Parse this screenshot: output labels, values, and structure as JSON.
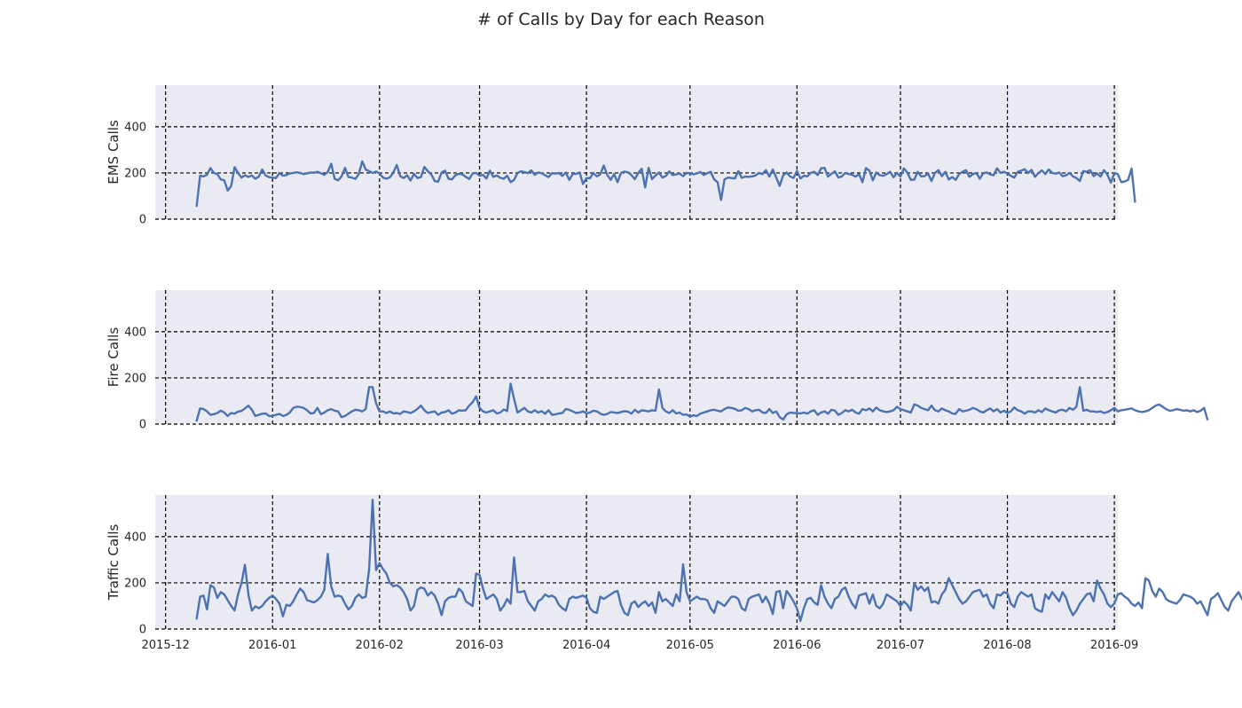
{
  "figure": {
    "title": "# of Calls by Day for each Reason"
  },
  "colors": {
    "line": "#4c72b0",
    "axes_background": "#eaeaf2",
    "grid": "#000000"
  },
  "chart_data": [
    {
      "type": "line",
      "ylabel": "EMS Calls",
      "ylim": [
        0,
        580
      ],
      "yticks": [
        0,
        200,
        400
      ],
      "xlim": [
        "2015-11-28",
        "2016-09-02"
      ],
      "xticks": [
        "2015-12",
        "2016-01",
        "2016-02",
        "2016-03",
        "2016-04",
        "2016-05",
        "2016-06",
        "2016-07",
        "2016-08",
        "2016-09"
      ],
      "grid": true,
      "series": [
        {
          "start": "2015-12-10",
          "values": [
            57,
            188,
            185,
            192,
            221,
            200,
            195,
            172,
            168,
            124,
            143,
            225,
            200,
            180,
            190,
            183,
            189,
            175,
            184,
            215,
            189,
            182,
            180,
            178,
            200,
            188,
            191,
            198,
            200,
            203,
            200,
            195,
            198,
            202,
            201,
            205,
            199,
            192,
            204,
            240,
            175,
            168,
            185,
            222,
            182,
            180,
            174,
            195,
            250,
            215,
            208,
            200,
            206,
            198,
            180,
            175,
            181,
            201,
            235,
            186,
            178,
            190,
            167,
            196,
            178,
            182,
            226,
            208,
            194,
            165,
            162,
            202,
            210,
            175,
            172,
            190,
            196,
            194,
            183,
            174,
            198,
            200,
            188,
            192,
            176,
            210,
            183,
            189,
            179,
            175,
            188,
            160,
            170,
            200,
            207,
            204,
            199,
            211,
            192,
            202,
            199,
            190,
            182,
            199,
            197,
            200,
            187,
            202,
            170,
            195,
            196,
            202,
            152,
            178,
            177,
            200,
            185,
            194,
            232,
            192,
            170,
            195,
            160,
            200,
            206,
            203,
            191,
            173,
            200,
            218,
            137,
            222,
            173,
            189,
            202,
            180,
            187,
            207,
            191,
            194,
            197,
            186,
            200,
            198,
            194,
            198,
            204,
            191,
            199,
            205,
            172,
            160,
            83,
            172,
            180,
            178,
            176,
            208,
            179,
            184,
            183,
            185,
            189,
            200,
            195,
            212,
            184,
            215,
            180,
            144,
            190,
            202,
            185,
            178,
            209,
            176,
            188,
            185,
            200,
            205,
            191,
            220,
            222,
            184,
            196,
            207,
            180,
            185,
            200,
            195,
            192,
            184,
            195,
            160,
            221,
            210,
            168,
            202,
            190,
            188,
            195,
            205,
            181,
            200,
            184,
            220,
            201,
            170,
            171,
            205,
            185,
            186,
            198,
            165,
            200,
            212,
            186,
            205,
            172,
            182,
            170,
            195,
            205,
            212,
            183,
            195,
            200,
            175,
            199,
            202,
            194,
            190,
            220,
            200,
            205,
            197,
            188,
            180,
            205,
            210,
            216,
            200,
            213,
            183,
            200,
            211,
            195,
            215,
            200,
            197,
            202,
            186,
            190,
            200,
            185,
            178,
            165,
            208,
            205,
            212,
            186,
            198,
            184,
            212,
            192,
            158,
            200,
            195,
            160,
            163,
            170,
            219,
            75
          ]
        }
      ]
    },
    {
      "type": "line",
      "ylabel": "Fire Calls",
      "ylim": [
        0,
        580
      ],
      "yticks": [
        0,
        200,
        400
      ],
      "xlim": [
        "2015-11-28",
        "2016-09-02"
      ],
      "xticks": [
        "2015-12",
        "2016-01",
        "2016-02",
        "2016-03",
        "2016-04",
        "2016-05",
        "2016-06",
        "2016-07",
        "2016-08",
        "2016-09"
      ],
      "grid": true,
      "series": [
        {
          "start": "2015-12-10",
          "values": [
            15,
            68,
            65,
            55,
            40,
            43,
            48,
            58,
            50,
            35,
            48,
            45,
            54,
            57,
            68,
            80,
            62,
            35,
            40,
            45,
            46,
            35,
            35,
            40,
            44,
            35,
            40,
            50,
            70,
            75,
            74,
            70,
            60,
            46,
            48,
            70,
            43,
            50,
            60,
            65,
            58,
            55,
            30,
            35,
            45,
            55,
            62,
            60,
            55,
            65,
            160,
            160,
            90,
            55,
            55,
            48,
            55,
            46,
            48,
            44,
            55,
            52,
            48,
            55,
            66,
            80,
            60,
            48,
            52,
            55,
            40,
            50,
            52,
            60,
            45,
            50,
            60,
            58,
            60,
            80,
            95,
            120,
            70,
            55,
            50,
            55,
            60,
            46,
            50,
            63,
            56,
            175,
            110,
            50,
            60,
            70,
            55,
            50,
            60,
            50,
            56,
            45,
            60,
            40,
            42,
            46,
            48,
            65,
            62,
            55,
            48,
            50,
            55,
            46,
            50,
            58,
            55,
            45,
            40,
            44,
            52,
            50,
            48,
            52,
            56,
            54,
            45,
            62,
            50,
            60,
            58,
            55,
            60,
            58,
            150,
            70,
            55,
            48,
            60,
            46,
            50,
            40,
            42,
            32,
            38,
            35,
            45,
            50,
            55,
            60,
            62,
            58,
            55,
            65,
            72,
            70,
            66,
            58,
            60,
            70,
            65,
            55,
            60,
            62,
            50,
            48,
            65,
            48,
            55,
            30,
            20,
            42,
            50,
            48,
            48,
            46,
            50,
            45,
            55,
            60,
            40,
            50,
            55,
            45,
            62,
            58,
            40,
            48,
            60,
            55,
            62,
            50,
            45,
            65,
            60,
            68,
            55,
            72,
            60,
            55,
            52,
            55,
            60,
            75,
            65,
            60,
            55,
            50,
            85,
            80,
            70,
            65,
            60,
            80,
            60,
            55,
            68,
            60,
            55,
            46,
            44,
            65,
            55,
            58,
            62,
            70,
            65,
            55,
            50,
            60,
            68,
            55,
            65,
            50,
            58,
            48,
            55,
            72,
            60,
            55,
            45,
            55,
            55,
            50,
            60,
            52,
            68,
            60,
            55,
            50,
            60,
            62,
            55,
            70,
            62,
            75,
            160,
            58,
            62,
            55,
            55,
            52,
            55,
            48,
            52,
            60,
            70,
            55,
            60,
            62,
            65,
            68,
            60,
            55,
            52,
            55,
            60,
            70,
            80,
            85,
            75,
            65,
            58,
            60,
            65,
            62,
            58,
            60,
            55,
            60,
            52,
            58,
            70,
            20
          ]
        }
      ]
    },
    {
      "type": "line",
      "ylabel": "Traffic Calls",
      "ylim": [
        0,
        580
      ],
      "yticks": [
        0,
        200,
        400
      ],
      "xlim": [
        "2015-11-28",
        "2016-09-02"
      ],
      "xticks": [
        "2015-12",
        "2016-01",
        "2016-02",
        "2016-03",
        "2016-04",
        "2016-05",
        "2016-06",
        "2016-07",
        "2016-08",
        "2016-09"
      ],
      "grid": true,
      "series": [
        {
          "start": "2015-12-10",
          "values": [
            45,
            140,
            145,
            85,
            190,
            180,
            135,
            160,
            150,
            125,
            100,
            80,
            150,
            200,
            278,
            150,
            80,
            98,
            90,
            100,
            120,
            135,
            145,
            130,
            110,
            55,
            105,
            100,
            120,
            150,
            175,
            160,
            125,
            120,
            115,
            125,
            140,
            170,
            325,
            185,
            140,
            145,
            140,
            110,
            85,
            100,
            135,
            150,
            135,
            140,
            260,
            560,
            255,
            285,
            260,
            240,
            200,
            185,
            190,
            180,
            160,
            130,
            80,
            100,
            170,
            180,
            175,
            145,
            160,
            145,
            110,
            60,
            120,
            135,
            140,
            140,
            175,
            160,
            120,
            110,
            100,
            240,
            235,
            175,
            130,
            140,
            150,
            130,
            80,
            100,
            130,
            110,
            310,
            160,
            160,
            165,
            120,
            100,
            80,
            120,
            130,
            150,
            140,
            145,
            135,
            105,
            90,
            80,
            130,
            140,
            135,
            140,
            145,
            135,
            90,
            75,
            70,
            140,
            130,
            140,
            150,
            160,
            165,
            105,
            70,
            60,
            110,
            120,
            95,
            110,
            120,
            100,
            115,
            70,
            160,
            120,
            130,
            115,
            100,
            150,
            120,
            280,
            160,
            120,
            130,
            140,
            130,
            130,
            125,
            90,
            70,
            120,
            110,
            100,
            120,
            140,
            140,
            130,
            90,
            80,
            130,
            140,
            145,
            150,
            115,
            140,
            110,
            65,
            160,
            165,
            90,
            165,
            145,
            120,
            90,
            35,
            90,
            130,
            135,
            115,
            105,
            190,
            140,
            110,
            90,
            130,
            140,
            170,
            180,
            140,
            110,
            90,
            145,
            150,
            155,
            110,
            150,
            100,
            90,
            110,
            150,
            140,
            130,
            120,
            100,
            120,
            105,
            80,
            200,
            170,
            185,
            165,
            180,
            115,
            120,
            110,
            150,
            170,
            220,
            190,
            160,
            130,
            110,
            120,
            140,
            160,
            165,
            170,
            140,
            150,
            110,
            90,
            150,
            145,
            160,
            155,
            110,
            95,
            140,
            160,
            150,
            140,
            150,
            90,
            80,
            75,
            150,
            130,
            160,
            140,
            120,
            160,
            135,
            90,
            60,
            80,
            110,
            130,
            150,
            155,
            120,
            210,
            175,
            150,
            110,
            95,
            110,
            150,
            155,
            140,
            130,
            110,
            100,
            115,
            90,
            220,
            210,
            165,
            140,
            175,
            160,
            130,
            120,
            115,
            110,
            125,
            150,
            145,
            140,
            130,
            110,
            120,
            90,
            60,
            130,
            140,
            155,
            125,
            95,
            80,
            120,
            140,
            160,
            130,
            110,
            90,
            120,
            140,
            170,
            180,
            130,
            100,
            120,
            140,
            160,
            150,
            140,
            110,
            100,
            120,
            135,
            150,
            160,
            155,
            130,
            160,
            150,
            45
          ]
        }
      ]
    }
  ]
}
